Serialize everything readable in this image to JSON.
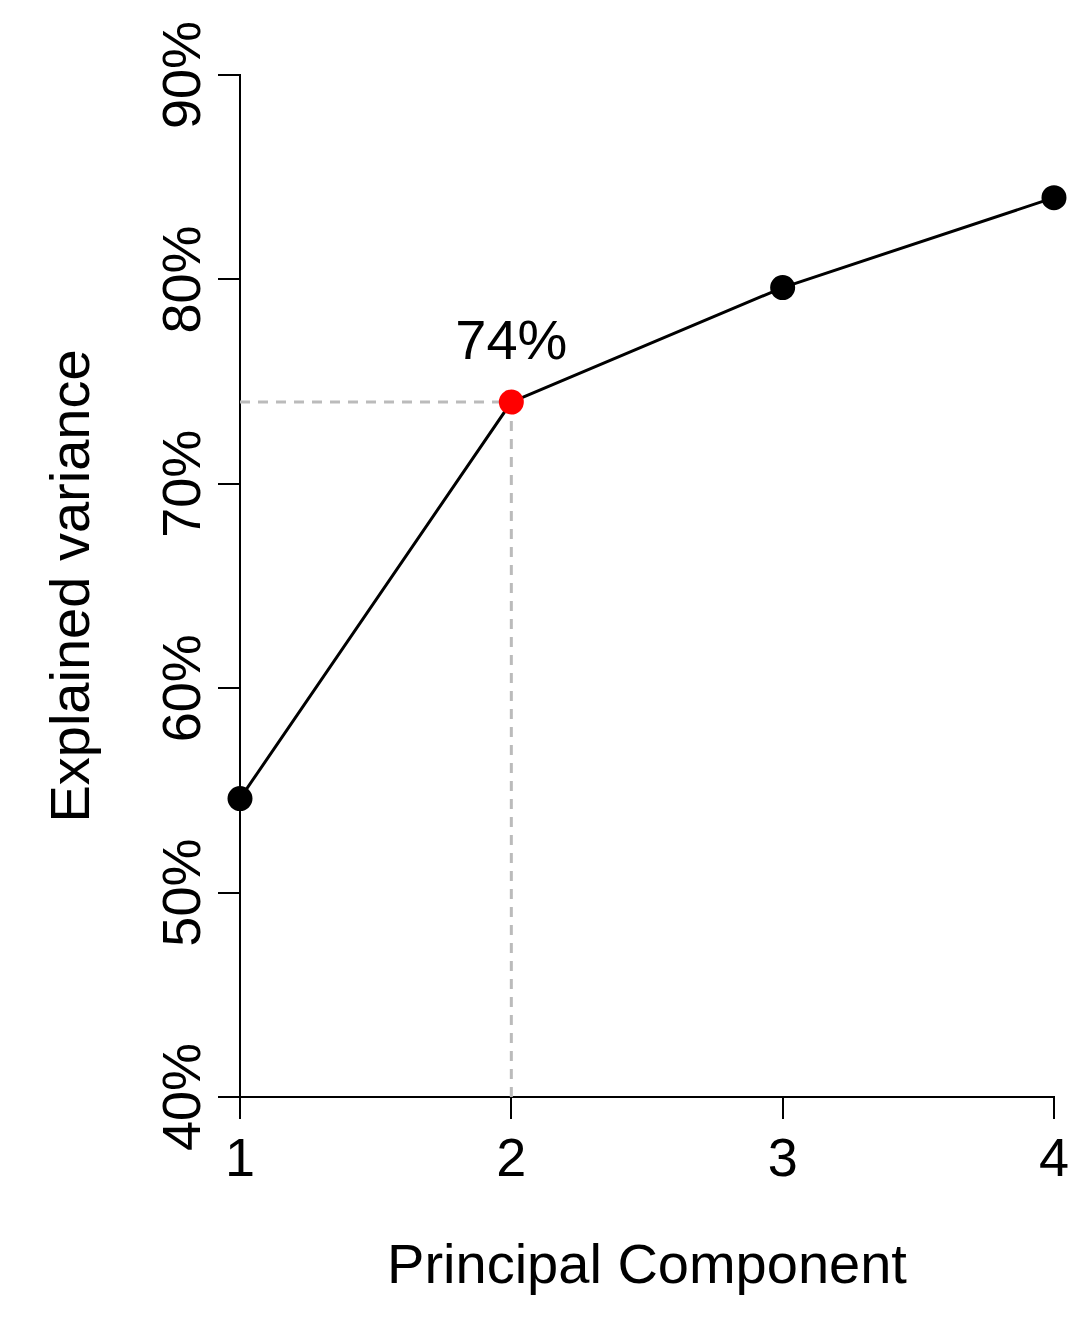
{
  "chart_data": {
    "type": "line",
    "xlabel": "Principal Component",
    "ylabel": "Explained variance",
    "x": [
      1,
      2,
      3,
      4
    ],
    "series": [
      {
        "color": "#000000",
        "colors": [
          "#000000",
          "#ff0000",
          "#000000",
          "#000000"
        ],
        "values": [
          54.6,
          74,
          79.6,
          84.0
        ]
      }
    ],
    "xlim": [
      1,
      4
    ],
    "xticks": [
      1,
      2,
      3,
      4
    ],
    "ylim": [
      40,
      90
    ],
    "yticks": [
      {
        "value": 40,
        "label": "40%"
      },
      {
        "value": 50,
        "label": "50%"
      },
      {
        "value": 60,
        "label": "60%"
      },
      {
        "value": 70,
        "label": "70%"
      },
      {
        "value": 80,
        "label": "80%"
      },
      {
        "value": 90,
        "label": "90%"
      }
    ],
    "ref_lines": [
      {
        "axis": "y",
        "value": 74,
        "color": "#bbbbbb",
        "line_style": "dashed"
      },
      {
        "axis": "x",
        "value": 2,
        "color": "#bbbbbb",
        "line_style": "dashed"
      }
    ],
    "annotations": [
      {
        "text": "74%",
        "x": 2,
        "y": 74
      }
    ],
    "grid": false,
    "legend": false,
    "marker": "circle",
    "line_style": "solid"
  }
}
